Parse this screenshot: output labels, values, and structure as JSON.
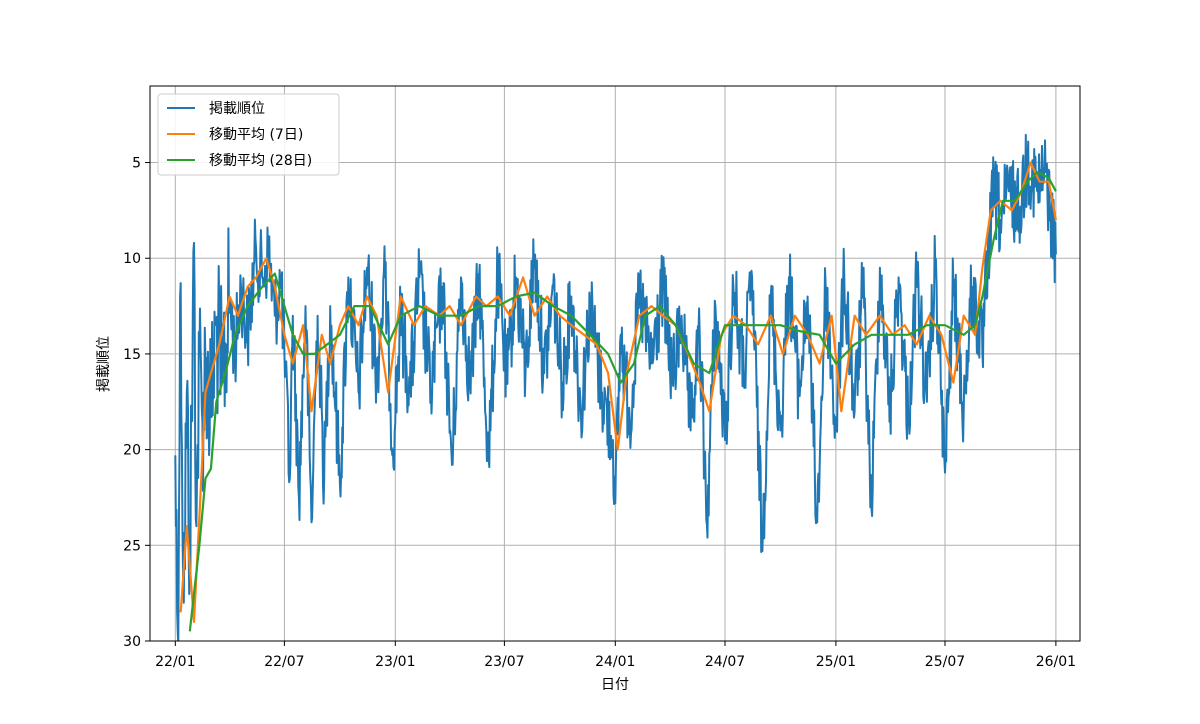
{
  "chart_data": {
    "type": "line",
    "title": "",
    "xlabel": "日付",
    "ylabel": "掲載順位",
    "y_inverted": true,
    "ylim": [
      30,
      1
    ],
    "y_ticks": [
      5,
      10,
      15,
      20,
      25,
      30
    ],
    "x_range": [
      "2021-11-20",
      "2026-02-10"
    ],
    "x_ticks": [
      {
        "date": "2022-01-01",
        "label": "22/01"
      },
      {
        "date": "2022-07-01",
        "label": "22/07"
      },
      {
        "date": "2023-01-01",
        "label": "23/01"
      },
      {
        "date": "2023-07-01",
        "label": "23/07"
      },
      {
        "date": "2024-01-01",
        "label": "24/01"
      },
      {
        "date": "2024-07-01",
        "label": "24/07"
      },
      {
        "date": "2025-01-01",
        "label": "25/01"
      },
      {
        "date": "2025-07-01",
        "label": "25/07"
      },
      {
        "date": "2026-01-01",
        "label": "26/01"
      }
    ],
    "grid": true,
    "legend_position": "upper-left",
    "series": [
      {
        "name": "掲載順位",
        "color": "#1f77b4",
        "style": "daily-noisy",
        "points": [
          [
            "2022-01-01",
            20.3
          ],
          [
            "2022-01-05",
            29.5
          ],
          [
            "2022-01-10",
            11.3
          ],
          [
            "2022-01-15",
            28.0
          ],
          [
            "2022-01-20",
            17.0
          ],
          [
            "2022-01-25",
            26.0
          ],
          [
            "2022-02-01",
            9.2
          ],
          [
            "2022-02-05",
            24.0
          ],
          [
            "2022-02-10",
            15.0
          ],
          [
            "2022-02-15",
            18.5
          ],
          [
            "2022-02-20",
            15.5
          ],
          [
            "2022-03-01",
            18.0
          ],
          [
            "2022-03-10",
            13.5
          ],
          [
            "2022-03-20",
            16.5
          ],
          [
            "2022-04-01",
            12.0
          ],
          [
            "2022-04-10",
            15.0
          ],
          [
            "2022-04-20",
            11.5
          ],
          [
            "2022-05-01",
            14.0
          ],
          [
            "2022-05-15",
            9.5
          ],
          [
            "2022-05-25",
            11.0
          ],
          [
            "2022-06-05",
            9.8
          ],
          [
            "2022-06-15",
            13.0
          ],
          [
            "2022-06-25",
            11.0
          ],
          [
            "2022-07-01",
            15.0
          ],
          [
            "2022-07-10",
            21.5
          ],
          [
            "2022-07-15",
            13.0
          ],
          [
            "2022-07-25",
            22.5
          ],
          [
            "2022-08-05",
            12.5
          ],
          [
            "2022-08-15",
            23.8
          ],
          [
            "2022-08-25",
            13.0
          ],
          [
            "2022-09-05",
            21.5
          ],
          [
            "2022-09-15",
            12.5
          ],
          [
            "2022-10-01",
            21.8
          ],
          [
            "2022-10-15",
            11.0
          ],
          [
            "2022-11-01",
            17.0
          ],
          [
            "2022-11-15",
            10.5
          ],
          [
            "2022-12-01",
            16.0
          ],
          [
            "2022-12-15",
            11.0
          ],
          [
            "2022-12-28",
            20.0
          ],
          [
            "2023-01-10",
            13.0
          ],
          [
            "2023-01-25",
            17.0
          ],
          [
            "2023-02-10",
            11.0
          ],
          [
            "2023-03-01",
            17.0
          ],
          [
            "2023-03-20",
            11.5
          ],
          [
            "2023-04-05",
            20.8
          ],
          [
            "2023-04-20",
            11.0
          ],
          [
            "2023-05-05",
            16.5
          ],
          [
            "2023-05-20",
            11.0
          ],
          [
            "2023-06-05",
            20.5
          ],
          [
            "2023-06-20",
            10.8
          ],
          [
            "2023-07-05",
            16.5
          ],
          [
            "2023-07-20",
            11.0
          ],
          [
            "2023-08-05",
            16.0
          ],
          [
            "2023-08-20",
            9.8
          ],
          [
            "2023-09-05",
            16.0
          ],
          [
            "2023-09-20",
            11.5
          ],
          [
            "2023-10-05",
            16.5
          ],
          [
            "2023-10-20",
            12.0
          ],
          [
            "2023-11-05",
            18.0
          ],
          [
            "2023-11-20",
            12.5
          ],
          [
            "2023-12-10",
            17.0
          ],
          [
            "2023-12-28",
            19.5
          ],
          [
            "2024-01-01",
            22.8
          ],
          [
            "2024-01-10",
            14.0
          ],
          [
            "2024-01-25",
            18.5
          ],
          [
            "2024-02-10",
            12.0
          ],
          [
            "2024-03-01",
            15.5
          ],
          [
            "2024-03-20",
            11.5
          ],
          [
            "2024-04-05",
            16.5
          ],
          [
            "2024-04-20",
            13.0
          ],
          [
            "2024-05-05",
            19.0
          ],
          [
            "2024-05-20",
            14.0
          ],
          [
            "2024-06-01",
            23.9
          ],
          [
            "2024-06-15",
            12.5
          ],
          [
            "2024-07-01",
            19.5
          ],
          [
            "2024-07-15",
            11.5
          ],
          [
            "2024-08-01",
            16.0
          ],
          [
            "2024-08-15",
            11.0
          ],
          [
            "2024-09-01",
            25.3
          ],
          [
            "2024-09-15",
            12.0
          ],
          [
            "2024-10-01",
            19.0
          ],
          [
            "2024-10-15",
            11.0
          ],
          [
            "2024-11-01",
            17.0
          ],
          [
            "2024-11-15",
            12.0
          ],
          [
            "2024-12-01",
            23.8
          ],
          [
            "2024-12-15",
            11.5
          ],
          [
            "2025-01-01",
            19.0
          ],
          [
            "2025-01-15",
            11.0
          ],
          [
            "2025-02-01",
            18.0
          ],
          [
            "2025-02-15",
            11.5
          ],
          [
            "2025-03-01",
            23.1
          ],
          [
            "2025-03-15",
            10.5
          ],
          [
            "2025-04-01",
            18.0
          ],
          [
            "2025-04-15",
            11.0
          ],
          [
            "2025-05-01",
            18.5
          ],
          [
            "2025-05-15",
            11.0
          ],
          [
            "2025-06-01",
            17.5
          ],
          [
            "2025-06-15",
            10.5
          ],
          [
            "2025-07-01",
            21.2
          ],
          [
            "2025-07-15",
            11.5
          ],
          [
            "2025-08-01",
            18.0
          ],
          [
            "2025-08-15",
            11.5
          ],
          [
            "2025-09-01",
            15.0
          ],
          [
            "2025-09-10",
            10.0
          ],
          [
            "2025-09-20",
            6.5
          ],
          [
            "2025-10-01",
            8.0
          ],
          [
            "2025-10-15",
            6.5
          ],
          [
            "2025-11-01",
            7.5
          ],
          [
            "2025-11-15",
            4.8
          ],
          [
            "2025-12-01",
            6.5
          ],
          [
            "2025-12-15",
            5.5
          ],
          [
            "2026-01-01",
            9.8
          ]
        ]
      },
      {
        "name": "移動平均 (7日)",
        "color": "#ff7f0e",
        "style": "smooth",
        "points": [
          [
            "2022-01-10",
            28.5
          ],
          [
            "2022-01-20",
            24.0
          ],
          [
            "2022-02-01",
            29.0
          ],
          [
            "2022-02-10",
            23.5
          ],
          [
            "2022-02-20",
            17.0
          ],
          [
            "2022-03-01",
            16.0
          ],
          [
            "2022-03-15",
            14.5
          ],
          [
            "2022-04-01",
            12.0
          ],
          [
            "2022-04-15",
            13.0
          ],
          [
            "2022-05-01",
            11.5
          ],
          [
            "2022-05-15",
            11.0
          ],
          [
            "2022-06-01",
            10.0
          ],
          [
            "2022-06-15",
            11.5
          ],
          [
            "2022-07-01",
            14.0
          ],
          [
            "2022-07-15",
            15.5
          ],
          [
            "2022-08-01",
            13.5
          ],
          [
            "2022-08-15",
            18.0
          ],
          [
            "2022-09-01",
            14.0
          ],
          [
            "2022-09-15",
            15.5
          ],
          [
            "2022-10-01",
            13.5
          ],
          [
            "2022-10-15",
            12.5
          ],
          [
            "2022-11-01",
            13.5
          ],
          [
            "2022-11-15",
            12.0
          ],
          [
            "2022-12-01",
            13.0
          ],
          [
            "2022-12-20",
            17.0
          ],
          [
            "2023-01-10",
            12.0
          ],
          [
            "2023-02-01",
            13.5
          ],
          [
            "2023-02-20",
            12.5
          ],
          [
            "2023-03-15",
            13.0
          ],
          [
            "2023-04-01",
            12.5
          ],
          [
            "2023-04-20",
            13.5
          ],
          [
            "2023-05-15",
            12.0
          ],
          [
            "2023-06-01",
            12.5
          ],
          [
            "2023-06-20",
            12.0
          ],
          [
            "2023-07-10",
            13.0
          ],
          [
            "2023-08-01",
            11.0
          ],
          [
            "2023-08-20",
            13.0
          ],
          [
            "2023-09-10",
            12.0
          ],
          [
            "2023-10-01",
            13.0
          ],
          [
            "2023-10-20",
            13.5
          ],
          [
            "2023-11-10",
            14.0
          ],
          [
            "2023-12-01",
            14.5
          ],
          [
            "2023-12-20",
            16.0
          ],
          [
            "2024-01-05",
            20.0
          ],
          [
            "2024-01-20",
            16.0
          ],
          [
            "2024-02-10",
            13.0
          ],
          [
            "2024-03-01",
            12.5
          ],
          [
            "2024-03-20",
            13.0
          ],
          [
            "2024-04-10",
            13.5
          ],
          [
            "2024-05-01",
            15.0
          ],
          [
            "2024-05-20",
            16.5
          ],
          [
            "2024-06-05",
            18.0
          ],
          [
            "2024-06-25",
            14.0
          ],
          [
            "2024-07-15",
            13.0
          ],
          [
            "2024-08-05",
            13.5
          ],
          [
            "2024-08-25",
            14.5
          ],
          [
            "2024-09-15",
            13.0
          ],
          [
            "2024-10-05",
            15.0
          ],
          [
            "2024-10-25",
            13.0
          ],
          [
            "2024-11-15",
            14.0
          ],
          [
            "2024-12-05",
            15.5
          ],
          [
            "2024-12-25",
            13.0
          ],
          [
            "2025-01-10",
            18.0
          ],
          [
            "2025-02-01",
            13.0
          ],
          [
            "2025-02-20",
            14.0
          ],
          [
            "2025-03-15",
            13.0
          ],
          [
            "2025-04-05",
            14.0
          ],
          [
            "2025-04-25",
            13.5
          ],
          [
            "2025-05-15",
            14.5
          ],
          [
            "2025-06-05",
            13.0
          ],
          [
            "2025-06-25",
            14.0
          ],
          [
            "2025-07-15",
            16.5
          ],
          [
            "2025-08-01",
            13.0
          ],
          [
            "2025-08-20",
            14.0
          ],
          [
            "2025-09-01",
            10.5
          ],
          [
            "2025-09-15",
            7.5
          ],
          [
            "2025-10-01",
            7.0
          ],
          [
            "2025-10-20",
            7.5
          ],
          [
            "2025-11-05",
            6.5
          ],
          [
            "2025-11-20",
            5.0
          ],
          [
            "2025-12-05",
            6.0
          ],
          [
            "2025-12-20",
            6.0
          ],
          [
            "2026-01-01",
            8.0
          ]
        ]
      },
      {
        "name": "移動平均 (28日)",
        "color": "#2ca02c",
        "style": "smooth",
        "points": [
          [
            "2022-01-25",
            29.5
          ],
          [
            "2022-02-10",
            25.0
          ],
          [
            "2022-02-20",
            21.5
          ],
          [
            "2022-03-01",
            21.0
          ],
          [
            "2022-03-10",
            17.5
          ],
          [
            "2022-03-25",
            16.0
          ],
          [
            "2022-04-10",
            14.0
          ],
          [
            "2022-05-01",
            12.5
          ],
          [
            "2022-05-25",
            11.5
          ],
          [
            "2022-06-15",
            10.8
          ],
          [
            "2022-07-01",
            12.5
          ],
          [
            "2022-07-15",
            14.0
          ],
          [
            "2022-08-01",
            15.0
          ],
          [
            "2022-08-20",
            15.0
          ],
          [
            "2022-09-10",
            14.5
          ],
          [
            "2022-10-01",
            14.0
          ],
          [
            "2022-10-25",
            12.5
          ],
          [
            "2022-11-20",
            12.5
          ],
          [
            "2022-12-20",
            14.5
          ],
          [
            "2023-01-10",
            13.0
          ],
          [
            "2023-02-10",
            12.5
          ],
          [
            "2023-03-15",
            13.0
          ],
          [
            "2023-04-20",
            13.0
          ],
          [
            "2023-05-20",
            12.5
          ],
          [
            "2023-06-20",
            12.5
          ],
          [
            "2023-07-20",
            12.0
          ],
          [
            "2023-08-20",
            11.8
          ],
          [
            "2023-09-20",
            12.5
          ],
          [
            "2023-10-20",
            13.0
          ],
          [
            "2023-11-20",
            14.0
          ],
          [
            "2023-12-20",
            15.0
          ],
          [
            "2024-01-10",
            16.5
          ],
          [
            "2024-02-01",
            15.5
          ],
          [
            "2024-02-20",
            13.0
          ],
          [
            "2024-03-15",
            12.5
          ],
          [
            "2024-04-10",
            13.5
          ],
          [
            "2024-05-10",
            15.5
          ],
          [
            "2024-06-05",
            16.0
          ],
          [
            "2024-07-01",
            13.5
          ],
          [
            "2024-08-01",
            13.5
          ],
          [
            "2024-09-01",
            13.5
          ],
          [
            "2024-10-01",
            13.5
          ],
          [
            "2024-11-01",
            13.8
          ],
          [
            "2024-12-05",
            14.0
          ],
          [
            "2025-01-01",
            15.5
          ],
          [
            "2025-02-01",
            14.5
          ],
          [
            "2025-03-01",
            14.0
          ],
          [
            "2025-04-01",
            14.0
          ],
          [
            "2025-05-01",
            14.0
          ],
          [
            "2025-06-01",
            13.5
          ],
          [
            "2025-07-01",
            13.5
          ],
          [
            "2025-08-01",
            14.0
          ],
          [
            "2025-08-20",
            13.5
          ],
          [
            "2025-09-01",
            12.0
          ],
          [
            "2025-09-20",
            9.0
          ],
          [
            "2025-10-05",
            7.0
          ],
          [
            "2025-10-25",
            7.0
          ],
          [
            "2025-11-15",
            6.0
          ],
          [
            "2025-12-01",
            5.5
          ],
          [
            "2025-12-20",
            5.8
          ],
          [
            "2026-01-01",
            6.5
          ]
        ]
      }
    ]
  }
}
